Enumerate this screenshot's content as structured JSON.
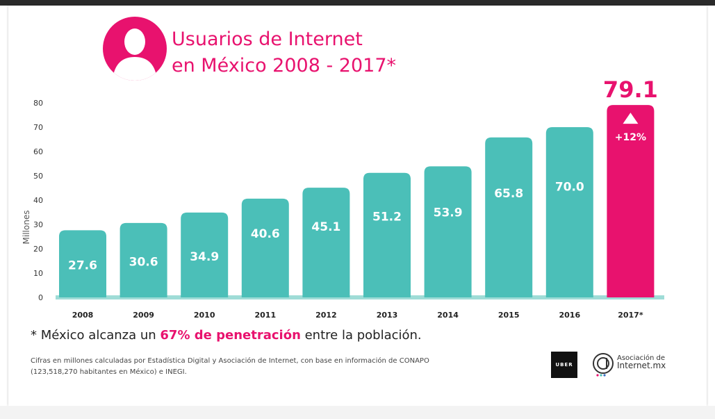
{
  "title_line1": "Usuarios de Internet",
  "title_line2": "en México 2008 - 2017*",
  "chart_data": {
    "type": "bar",
    "title": "Usuarios de Internet en México 2008 - 2017*",
    "ylabel": "Millones",
    "xlabel": "",
    "ylim": [
      0,
      80
    ],
    "yticks": [
      0,
      10,
      20,
      30,
      40,
      50,
      60,
      70,
      80
    ],
    "categories": [
      "2008",
      "2009",
      "2010",
      "2011",
      "2012",
      "2013",
      "2014",
      "2015",
      "2016",
      "2017*"
    ],
    "values": [
      27.6,
      30.6,
      34.9,
      40.6,
      45.1,
      51.2,
      53.9,
      65.8,
      70.0,
      79.1
    ],
    "labels": [
      "27.6",
      "30.6",
      "34.9",
      "40.6",
      "45.1",
      "51.2",
      "53.9",
      "65.8",
      "70.0",
      "79.1"
    ],
    "highlight": {
      "index": 9,
      "value_label": "79.1",
      "change_label": "+12%"
    },
    "grid": false,
    "colors": {
      "bar": "#4bbfb8",
      "highlight": "#e8126e",
      "baseline": "#9fdcd7"
    }
  },
  "footnote": {
    "before": "* México alcanza un ",
    "highlight": "67% de penetración",
    "after": " entre la población."
  },
  "source_text": "Cifras en millones calculadas por Estadística Digital y Asociación de Internet, con base en información de CONAPO (123,518,270 habitantes en México) e INEGI.",
  "logos": {
    "uber": "UBER",
    "aimx_line1": "Asociación de",
    "aimx_line2": "Internet.mx"
  }
}
